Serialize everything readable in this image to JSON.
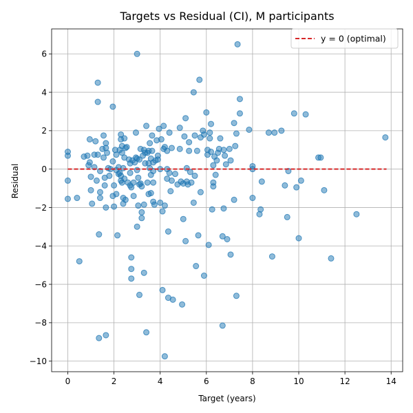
{
  "chart_data": {
    "type": "scatter",
    "title": "Targets vs Residual (CI), M participants",
    "xlabel": "Target (years)",
    "ylabel": "Residual",
    "xlim": [
      -0.7,
      14.5
    ],
    "ylim": [
      -10.55,
      7.3
    ],
    "x_ticks": [
      0,
      2,
      4,
      6,
      8,
      10,
      12,
      14
    ],
    "y_ticks": [
      -10,
      -8,
      -6,
      -4,
      -2,
      0,
      2,
      4,
      6
    ],
    "grid": true,
    "legend_position": "top-right",
    "point_color": "#1f77b4",
    "reference_line": {
      "label": "y = 0 (optimal)",
      "y": 0,
      "x_range": [
        0,
        13.8
      ],
      "color": "#d62728",
      "style": "dashed"
    },
    "series": [
      {
        "points": [
          [
            0.0,
            0.9
          ],
          [
            0.0,
            0.7
          ],
          [
            0.0,
            -0.6
          ],
          [
            0.0,
            -1.55
          ],
          [
            0.4,
            -1.5
          ],
          [
            0.5,
            -4.8
          ],
          [
            0.7,
            0.65
          ],
          [
            0.85,
            0.7
          ],
          [
            0.9,
            0.2
          ],
          [
            0.95,
            1.55
          ],
          [
            0.95,
            0.35
          ],
          [
            1.0,
            -0.4
          ],
          [
            1.0,
            -1.1
          ],
          [
            1.05,
            -1.8
          ],
          [
            1.15,
            0.75
          ],
          [
            1.15,
            0.1
          ],
          [
            1.2,
            1.45
          ],
          [
            1.25,
            -0.6
          ],
          [
            1.3,
            4.5
          ],
          [
            1.3,
            3.5
          ],
          [
            1.3,
            0.75
          ],
          [
            1.35,
            -3.4
          ],
          [
            1.35,
            -8.8
          ],
          [
            1.4,
            -0.1
          ],
          [
            1.4,
            -1.2
          ],
          [
            1.4,
            -1.5
          ],
          [
            1.5,
            1.05
          ],
          [
            1.55,
            1.75
          ],
          [
            1.55,
            0.6
          ],
          [
            1.6,
            -0.85
          ],
          [
            1.6,
            -0.45
          ],
          [
            1.65,
            1.35
          ],
          [
            1.65,
            1.1
          ],
          [
            1.65,
            -2.0
          ],
          [
            1.65,
            -8.65
          ],
          [
            1.7,
            0.85
          ],
          [
            1.75,
            0.05
          ],
          [
            1.8,
            -0.35
          ],
          [
            1.85,
            0.0
          ],
          [
            1.95,
            3.25
          ],
          [
            1.95,
            0.4
          ],
          [
            1.95,
            -1.4
          ],
          [
            2.0,
            -0.85
          ],
          [
            2.0,
            -1.95
          ],
          [
            2.05,
            1.0
          ],
          [
            2.1,
            0.75
          ],
          [
            2.1,
            -1.3
          ],
          [
            2.1,
            -0.05
          ],
          [
            2.15,
            -3.45
          ],
          [
            2.2,
            0.1
          ],
          [
            2.2,
            -0.25
          ],
          [
            2.25,
            1.0
          ],
          [
            2.25,
            -0.2
          ],
          [
            2.3,
            1.8
          ],
          [
            2.3,
            1.55
          ],
          [
            2.3,
            -0.35
          ],
          [
            2.3,
            -0.6
          ],
          [
            2.35,
            1.2
          ],
          [
            2.35,
            0.85
          ],
          [
            2.35,
            -0.7
          ],
          [
            2.4,
            0.05
          ],
          [
            2.4,
            -1.5
          ],
          [
            2.4,
            -1.8
          ],
          [
            2.45,
            1.6
          ],
          [
            2.45,
            0.6
          ],
          [
            2.45,
            -0.5
          ],
          [
            2.5,
            1.1
          ],
          [
            2.5,
            -1.6
          ],
          [
            2.55,
            1.15
          ],
          [
            2.6,
            -0.7
          ],
          [
            2.65,
            0.5
          ],
          [
            2.7,
            0.3
          ],
          [
            2.7,
            -0.2
          ],
          [
            2.7,
            -0.85
          ],
          [
            2.75,
            -0.95
          ],
          [
            2.75,
            -4.6
          ],
          [
            2.75,
            -5.2
          ],
          [
            2.75,
            -5.7
          ],
          [
            2.8,
            0.45
          ],
          [
            2.85,
            -0.7
          ],
          [
            2.85,
            -1.4
          ],
          [
            2.9,
            0.35
          ],
          [
            2.95,
            0.6
          ],
          [
            2.95,
            1.9
          ],
          [
            3.0,
            6.0
          ],
          [
            3.0,
            0.55
          ],
          [
            3.0,
            -0.05
          ],
          [
            3.0,
            -3.0
          ],
          [
            3.05,
            -1.9
          ],
          [
            3.05,
            -0.45
          ],
          [
            3.1,
            0.5
          ],
          [
            3.1,
            -0.8
          ],
          [
            3.1,
            -6.55
          ],
          [
            3.15,
            1.05
          ],
          [
            3.15,
            -0.75
          ],
          [
            3.2,
            -0.9
          ],
          [
            3.2,
            -2.25
          ],
          [
            3.2,
            -2.55
          ],
          [
            3.25,
            0.7
          ],
          [
            3.3,
            1.0
          ],
          [
            3.3,
            -1.85
          ],
          [
            3.3,
            -5.4
          ],
          [
            3.35,
            0.85
          ],
          [
            3.35,
            0.3
          ],
          [
            3.4,
            2.25
          ],
          [
            3.4,
            -8.5
          ],
          [
            3.45,
            0.85
          ],
          [
            3.45,
            -0.7
          ],
          [
            3.5,
            0.95
          ],
          [
            3.5,
            0.3
          ],
          [
            3.5,
            -1.3
          ],
          [
            3.55,
            1.35
          ],
          [
            3.55,
            0.05
          ],
          [
            3.6,
            0.55
          ],
          [
            3.6,
            -0.3
          ],
          [
            3.6,
            -1.25
          ],
          [
            3.65,
            1.75
          ],
          [
            3.65,
            0.95
          ],
          [
            3.7,
            0.35
          ],
          [
            3.7,
            -0.1
          ],
          [
            3.7,
            -0.7
          ],
          [
            3.7,
            -1.7
          ],
          [
            3.75,
            -1.85
          ],
          [
            3.8,
            0.45
          ],
          [
            3.85,
            1.5
          ],
          [
            3.9,
            0.7
          ],
          [
            3.9,
            0.5
          ],
          [
            3.95,
            2.1
          ],
          [
            4.0,
            0.0
          ],
          [
            4.0,
            -1.75
          ],
          [
            4.05,
            1.55
          ],
          [
            4.1,
            -6.3
          ],
          [
            4.1,
            -2.2
          ],
          [
            4.15,
            2.25
          ],
          [
            4.15,
            1.05
          ],
          [
            4.2,
            1.15
          ],
          [
            4.2,
            -1.9
          ],
          [
            4.2,
            -9.75
          ],
          [
            4.3,
            0.95
          ],
          [
            4.3,
            0.0
          ],
          [
            4.3,
            -0.5
          ],
          [
            4.35,
            -3.25
          ],
          [
            4.35,
            -6.7
          ],
          [
            4.4,
            1.9
          ],
          [
            4.4,
            -0.2
          ],
          [
            4.45,
            -1.15
          ],
          [
            4.5,
            1.1
          ],
          [
            4.5,
            -0.6
          ],
          [
            4.55,
            -6.8
          ],
          [
            4.65,
            -0.25
          ],
          [
            4.75,
            -0.8
          ],
          [
            4.85,
            2.15
          ],
          [
            4.85,
            1.05
          ],
          [
            4.9,
            -0.65
          ],
          [
            4.95,
            -7.05
          ],
          [
            5.0,
            -0.75
          ],
          [
            5.0,
            -2.6
          ],
          [
            5.05,
            1.7
          ],
          [
            5.1,
            2.65
          ],
          [
            5.1,
            -3.75
          ],
          [
            5.15,
            0.05
          ],
          [
            5.15,
            -0.65
          ],
          [
            5.2,
            -0.8
          ],
          [
            5.25,
            1.4
          ],
          [
            5.25,
            0.95
          ],
          [
            5.3,
            -0.15
          ],
          [
            5.35,
            -0.7
          ],
          [
            5.45,
            4.0
          ],
          [
            5.45,
            -1.75
          ],
          [
            5.5,
            1.75
          ],
          [
            5.5,
            -0.35
          ],
          [
            5.55,
            -5.05
          ],
          [
            5.6,
            0.95
          ],
          [
            5.65,
            -3.45
          ],
          [
            5.7,
            4.65
          ],
          [
            5.75,
            1.65
          ],
          [
            5.75,
            -1.2
          ],
          [
            5.85,
            2.0
          ],
          [
            5.9,
            1.8
          ],
          [
            5.9,
            -5.55
          ],
          [
            6.0,
            2.95
          ],
          [
            6.05,
            1.0
          ],
          [
            6.05,
            0.75
          ],
          [
            6.1,
            -3.95
          ],
          [
            6.15,
            1.9
          ],
          [
            6.15,
            1.6
          ],
          [
            6.2,
            2.35
          ],
          [
            6.2,
            0.9
          ],
          [
            6.25,
            -2.1
          ],
          [
            6.3,
            0.2
          ],
          [
            6.3,
            -0.7
          ],
          [
            6.3,
            -0.9
          ],
          [
            6.35,
            0.65
          ],
          [
            6.4,
            -0.3
          ],
          [
            6.45,
            0.45
          ],
          [
            6.5,
            0.85
          ],
          [
            6.55,
            1.05
          ],
          [
            6.6,
            1.6
          ],
          [
            6.7,
            -3.5
          ],
          [
            6.7,
            -8.15
          ],
          [
            6.75,
            1.0
          ],
          [
            6.75,
            -2.05
          ],
          [
            6.8,
            0.7
          ],
          [
            6.85,
            0.25
          ],
          [
            6.9,
            -3.65
          ],
          [
            7.0,
            1.05
          ],
          [
            7.05,
            0.45
          ],
          [
            7.05,
            -4.45
          ],
          [
            7.2,
            2.4
          ],
          [
            7.2,
            -1.6
          ],
          [
            7.25,
            1.2
          ],
          [
            7.3,
            1.85
          ],
          [
            7.3,
            -6.6
          ],
          [
            7.35,
            6.5
          ],
          [
            7.45,
            3.65
          ],
          [
            7.45,
            2.9
          ],
          [
            7.85,
            2.05
          ],
          [
            8.0,
            0.15
          ],
          [
            8.0,
            0.0
          ],
          [
            8.0,
            -1.5
          ],
          [
            8.3,
            -2.35
          ],
          [
            8.35,
            -2.1
          ],
          [
            8.4,
            -0.65
          ],
          [
            8.7,
            1.9
          ],
          [
            8.85,
            -4.55
          ],
          [
            8.95,
            1.9
          ],
          [
            9.25,
            2.0
          ],
          [
            9.4,
            -0.85
          ],
          [
            9.5,
            -2.5
          ],
          [
            9.55,
            -0.1
          ],
          [
            9.8,
            2.9
          ],
          [
            9.9,
            -0.95
          ],
          [
            10.0,
            -3.6
          ],
          [
            10.1,
            -0.6
          ],
          [
            10.3,
            2.85
          ],
          [
            10.85,
            0.6
          ],
          [
            10.95,
            0.6
          ],
          [
            11.1,
            -1.1
          ],
          [
            11.4,
            -4.65
          ],
          [
            12.5,
            -2.35
          ],
          [
            13.75,
            1.65
          ]
        ]
      }
    ]
  }
}
